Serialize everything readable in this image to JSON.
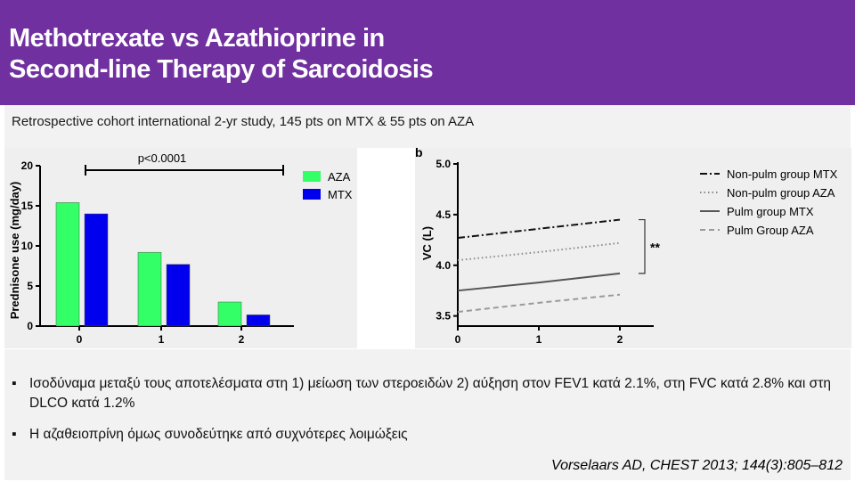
{
  "slide": {
    "title_line1": "Methotrexate vs Azathioprine in",
    "title_line2": "Second-line Therapy of Sarcoidosis",
    "subtitle": "Retrospective cohort international 2-yr study, 145 pts on MTX & 55 pts on AZA",
    "bullet_marker": "▪",
    "bullet1": "Ισοδύναμα μεταξύ τους αποτελέσματα στη 1) μείωση των στεροειδών 2) αύξηση στον FEV1 κατά 2.1%, στη FVC κατά 2.8% και στη DLCO κατά 1.2%",
    "bullet2": "Η αζαθειοπρίνη όμως συνοδεύτηκε από συχνότερες λοιμώξεις",
    "citation": "Vorselaars AD, CHEST 2013; 144(3):805–812",
    "colors": {
      "title_bg": "#7030a0",
      "aza": "#33ff66",
      "mtx": "#0000ee"
    }
  },
  "chart_data": [
    {
      "type": "bar",
      "categories": [
        "0",
        "1",
        "2"
      ],
      "series": [
        {
          "name": "AZA",
          "values": [
            15.4,
            9.2,
            3.0
          ],
          "color": "#33ff66"
        },
        {
          "name": "MTX",
          "values": [
            14.0,
            7.7,
            1.4
          ],
          "color": "#0000ee"
        }
      ],
      "ylabel": "Prednisone use (mg/day)",
      "ylim": [
        0,
        20
      ],
      "yticks": [
        "0",
        "5",
        "10",
        "15",
        "20"
      ],
      "annotation": "p<0.0001",
      "legend": "top-right",
      "grid": false
    },
    {
      "type": "line",
      "x": [
        0,
        1,
        2
      ],
      "xticks": [
        "0",
        "1",
        "2"
      ],
      "ylabel": "VC (L)",
      "ylim": [
        3.4,
        5.0
      ],
      "yticks": [
        "3.5",
        "4.0",
        "4.5",
        "5.0"
      ],
      "annotation": "**",
      "panel_label": "b",
      "legend": "top-right",
      "grid": false,
      "series": [
        {
          "name": "Non-pulm group MTX",
          "values": [
            4.27,
            4.36,
            4.45
          ],
          "style": "dashdot"
        },
        {
          "name": "Non-pulm group AZA",
          "values": [
            4.05,
            4.13,
            4.22
          ],
          "style": "dotted"
        },
        {
          "name": "Pulm group MTX",
          "values": [
            3.75,
            3.83,
            3.92
          ],
          "style": "solid"
        },
        {
          "name": "Pulm Group AZA",
          "values": [
            3.54,
            3.63,
            3.71
          ],
          "style": "dashed"
        }
      ]
    }
  ]
}
